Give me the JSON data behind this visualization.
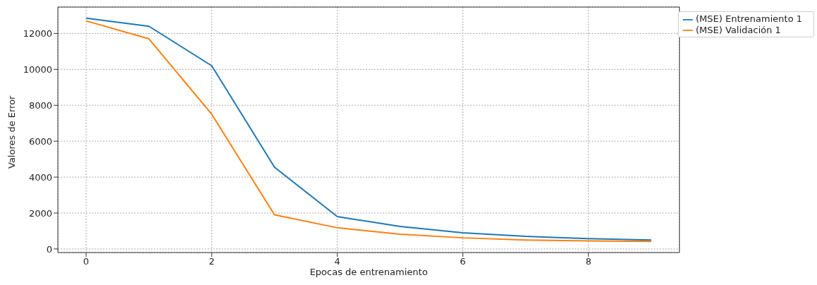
{
  "chart_data": {
    "type": "line",
    "xlabel": "Epocas de entrenamiento",
    "ylabel": "Valores de Error",
    "x": [
      0,
      1,
      2,
      3,
      4,
      5,
      6,
      7,
      8,
      9
    ],
    "series": [
      {
        "name": "(MSE) Entrenamiento 1",
        "color": "#1f77b4",
        "values": [
          12850,
          12400,
          10200,
          4550,
          1800,
          1250,
          900,
          700,
          580,
          500
        ]
      },
      {
        "name": "(MSE) Validación 1",
        "color": "#ff7f0e",
        "values": [
          12700,
          11700,
          7500,
          1900,
          1180,
          820,
          620,
          500,
          450,
          420
        ]
      }
    ],
    "xlim": [
      -0.45,
      9.45
    ],
    "xticks": [
      0,
      2,
      4,
      6,
      8
    ],
    "ylim": [
      -200,
      13470
    ],
    "yticks": [
      0,
      2000,
      4000,
      6000,
      8000,
      10000,
      12000
    ],
    "grid": true,
    "legend": "top right",
    "marker": "none",
    "line_style": "solid"
  }
}
